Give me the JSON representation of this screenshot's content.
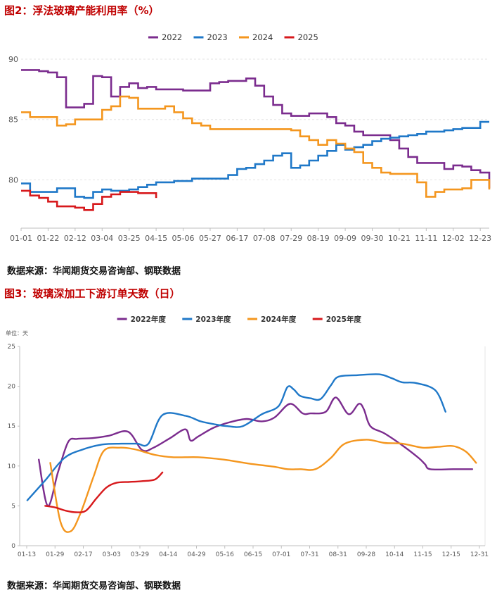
{
  "figure2": {
    "title": "图2：浮法玻璃产能利用率（%）",
    "source": "数据来源：华闻期货交易咨询部、钢联数据"
  },
  "figure3": {
    "title": "图3：玻璃深加工下游订单天数（日）",
    "source": "数据来源：华闻期货交易咨询部、钢联数据"
  },
  "chart_data": [
    {
      "type": "line",
      "title": "图2：浮法玻璃产能利用率（%）",
      "xlabel": "",
      "ylabel": "",
      "ylim": [
        76,
        90
      ],
      "y_ticks": [
        80,
        85,
        90
      ],
      "x_tick_labels": [
        "01-01",
        "01-22",
        "02-12",
        "03-04",
        "03-25",
        "04-15",
        "05-06",
        "05-27",
        "06-17",
        "07-08",
        "07-29",
        "08-19",
        "09-09",
        "09-30",
        "10-21",
        "11-11",
        "12-02",
        "12-23"
      ],
      "x_unit": "week_index",
      "grid": "horizontal dashed",
      "legend_position": "top-center",
      "series": [
        {
          "name": "2022",
          "color": "#7b2c8e",
          "x": [
            0,
            1,
            2,
            3,
            4,
            5,
            6,
            7,
            8,
            9,
            10,
            11,
            12,
            13,
            14,
            15,
            16,
            17,
            18,
            19,
            20,
            21,
            22,
            23,
            24,
            25,
            26,
            27,
            28,
            29,
            30,
            31,
            32,
            33,
            34,
            35,
            36,
            37,
            38,
            39,
            40,
            41,
            42,
            43,
            44,
            45,
            46,
            47,
            48,
            49,
            50,
            51,
            52
          ],
          "values": [
            89.1,
            89.1,
            89.0,
            88.9,
            88.5,
            86.0,
            86.0,
            86.3,
            88.6,
            88.5,
            86.9,
            87.7,
            88.0,
            87.6,
            87.7,
            87.5,
            87.5,
            87.5,
            87.4,
            87.4,
            87.4,
            88.0,
            88.1,
            88.2,
            88.2,
            88.4,
            87.8,
            86.9,
            86.2,
            85.5,
            85.3,
            85.3,
            85.5,
            85.5,
            85.2,
            84.7,
            84.5,
            84.0,
            83.7,
            83.7,
            83.7,
            83.3,
            82.6,
            81.9,
            81.4,
            81.4,
            81.4,
            80.9,
            81.2,
            81.1,
            80.8,
            80.6,
            79.3
          ]
        },
        {
          "name": "2023",
          "color": "#1f78c8",
          "x": [
            0,
            1,
            2,
            3,
            4,
            5,
            6,
            7,
            8,
            9,
            10,
            11,
            12,
            13,
            14,
            15,
            16,
            17,
            18,
            19,
            20,
            21,
            22,
            23,
            24,
            25,
            26,
            27,
            28,
            29,
            30,
            31,
            32,
            33,
            34,
            35,
            36,
            37,
            38,
            39,
            40,
            41,
            42,
            43,
            44,
            45,
            46,
            47,
            48,
            49,
            50,
            51,
            52
          ],
          "values": [
            79.7,
            79.0,
            79.0,
            79.0,
            79.3,
            79.3,
            78.6,
            78.5,
            79.0,
            79.2,
            79.1,
            79.1,
            79.2,
            79.4,
            79.6,
            79.8,
            79.8,
            79.9,
            79.9,
            80.1,
            80.1,
            80.1,
            80.1,
            80.4,
            80.9,
            81.0,
            81.3,
            81.6,
            82.0,
            82.2,
            81.0,
            81.2,
            81.6,
            82.0,
            82.4,
            82.9,
            82.5,
            82.7,
            82.9,
            83.2,
            83.4,
            83.5,
            83.6,
            83.7,
            83.8,
            84.0,
            84.0,
            84.1,
            84.2,
            84.3,
            84.3,
            84.8,
            84.8
          ]
        },
        {
          "name": "2024",
          "color": "#f4961e",
          "x": [
            0,
            1,
            2,
            3,
            4,
            5,
            6,
            7,
            8,
            9,
            10,
            11,
            12,
            13,
            14,
            15,
            16,
            17,
            18,
            19,
            20,
            21,
            22,
            23,
            24,
            25,
            26,
            27,
            28,
            29,
            30,
            31,
            32,
            33,
            34,
            35,
            36,
            37,
            38,
            39,
            40,
            41,
            42,
            43,
            44,
            45,
            46,
            47,
            48,
            49,
            50,
            51,
            52
          ],
          "values": [
            85.6,
            85.2,
            85.2,
            85.2,
            84.5,
            84.6,
            85.0,
            85.0,
            85.0,
            85.8,
            86.1,
            86.9,
            86.8,
            85.9,
            85.9,
            85.9,
            86.1,
            85.6,
            85.1,
            84.7,
            84.5,
            84.2,
            84.2,
            84.2,
            84.2,
            84.2,
            84.2,
            84.2,
            84.2,
            84.2,
            84.1,
            83.6,
            83.3,
            82.9,
            83.3,
            83.0,
            82.6,
            82.3,
            81.4,
            81.0,
            80.6,
            80.5,
            80.5,
            80.5,
            79.8,
            78.6,
            79.0,
            79.2,
            79.2,
            79.3,
            80.0,
            80.0,
            79.2
          ]
        },
        {
          "name": "2025",
          "color": "#d7191c",
          "x": [
            0,
            1,
            2,
            3,
            4,
            5,
            6,
            7,
            8,
            9,
            10,
            11,
            12,
            13,
            14,
            15
          ],
          "values": [
            79.1,
            78.7,
            78.5,
            78.2,
            77.8,
            77.8,
            77.7,
            77.5,
            78.0,
            78.6,
            78.8,
            79.0,
            79.0,
            78.9,
            78.9,
            78.5
          ]
        }
      ]
    },
    {
      "type": "line",
      "title": "图3：玻璃深加工下游订单天数（日）",
      "unit_label": "单位：天",
      "xlabel": "",
      "ylabel": "",
      "ylim": [
        0,
        25
      ],
      "y_ticks": [
        0,
        5,
        10,
        15,
        20,
        25
      ],
      "x_tick_labels": [
        "01-13",
        "01-29",
        "02-17",
        "03-03",
        "03-29",
        "04-14",
        "04-29",
        "05-16",
        "06-15",
        "07-01",
        "07-31",
        "08-31",
        "09-28",
        "10-14",
        "11-15",
        "12-15",
        "12-31"
      ],
      "x_unit": "day_of_year",
      "grid": "none",
      "legend_position": "top-center",
      "series": [
        {
          "name": "2022年度",
          "color": "#7b2c8e",
          "x": [
            15,
            22,
            30,
            38,
            45,
            57,
            70,
            85,
            96,
            105,
            118,
            130,
            134,
            140,
            152,
            165,
            178,
            190,
            200,
            212,
            222,
            228,
            240,
            248,
            258,
            266,
            270,
            275,
            286,
            300,
            313,
            318,
            322,
            340,
            348,
            355
          ],
          "values": [
            10.8,
            5.0,
            9.2,
            13.0,
            13.4,
            13.5,
            13.8,
            14.3,
            12.0,
            12.3,
            13.5,
            14.6,
            13.2,
            13.7,
            14.8,
            15.5,
            15.9,
            15.6,
            16.1,
            17.8,
            16.6,
            16.6,
            16.8,
            18.6,
            16.5,
            17.8,
            17.1,
            15.0,
            14.1,
            12.6,
            11.0,
            10.2,
            9.6,
            9.6,
            9.6,
            9.6
          ]
        },
        {
          "name": "2023年度",
          "color": "#1f78c8",
          "x": [
            6,
            20,
            35,
            50,
            65,
            80,
            92,
            101,
            112,
            130,
            142,
            154,
            163,
            175,
            190,
            203,
            210,
            215,
            220,
            228,
            236,
            244,
            250,
            265,
            282,
            292,
            300,
            311,
            326,
            334
          ],
          "values": [
            5.7,
            8.2,
            11.0,
            12.1,
            12.7,
            12.8,
            12.8,
            12.8,
            16.4,
            16.3,
            15.6,
            15.2,
            15.0,
            15.0,
            16.5,
            17.5,
            19.9,
            19.6,
            18.8,
            18.5,
            18.4,
            20.1,
            21.2,
            21.4,
            21.5,
            21.0,
            20.5,
            20.4,
            19.5,
            16.8
          ]
        },
        {
          "name": "2024年度",
          "color": "#f4961e",
          "x": [
            24,
            32,
            40,
            48,
            58,
            66,
            78,
            90,
            106,
            120,
            140,
            160,
            180,
            200,
            210,
            220,
            232,
            244,
            255,
            272,
            286,
            300,
            316,
            328,
            340,
            350,
            358
          ],
          "values": [
            10.4,
            3.0,
            1.8,
            4.2,
            8.7,
            11.9,
            12.3,
            12.1,
            11.4,
            11.1,
            11.1,
            10.8,
            10.3,
            9.9,
            9.6,
            9.6,
            9.6,
            11.0,
            12.8,
            13.3,
            12.9,
            12.8,
            12.3,
            12.4,
            12.5,
            11.8,
            10.4
          ]
        },
        {
          "name": "2025年度",
          "color": "#d7191c",
          "x": [
            20,
            28,
            36,
            44,
            52,
            60,
            68,
            76,
            86,
            96,
            106,
            112
          ],
          "values": [
            5.0,
            4.8,
            4.4,
            4.2,
            4.4,
            5.9,
            7.3,
            7.9,
            8.0,
            8.1,
            8.3,
            9.2
          ]
        }
      ]
    }
  ]
}
